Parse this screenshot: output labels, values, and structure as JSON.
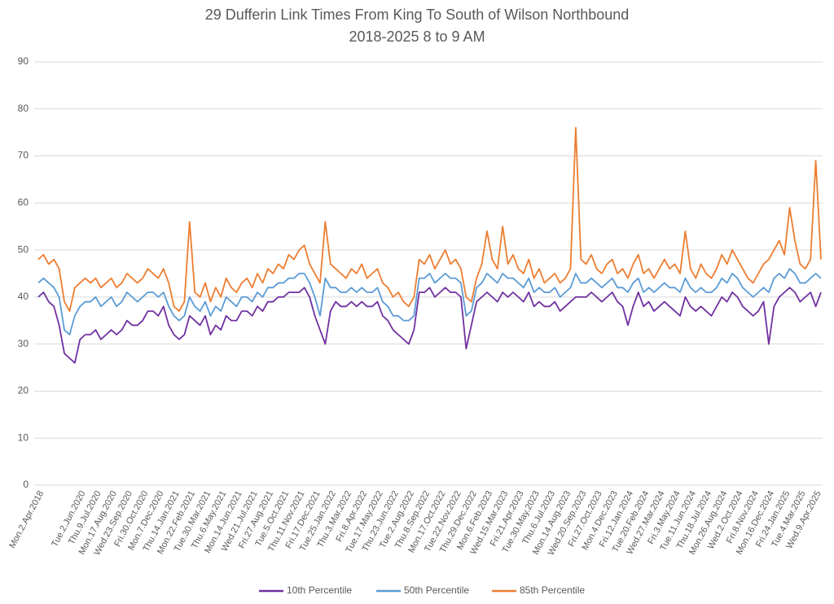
{
  "chart_data": {
    "type": "line",
    "title": "29 Dufferin Link Times From King To South of Wilson Northbound",
    "subtitle": "2018-2025 8 to 9 AM",
    "categories": [
      "Mon.2.Apr.2018",
      null,
      null,
      null,
      null,
      null,
      null,
      null,
      "Tue.2.Jun.2020",
      null,
      null,
      "Thu.9.Jul.2020",
      null,
      null,
      "Mon.17.Aug.2020",
      null,
      null,
      "Wed.23.Sep.2020",
      null,
      null,
      "Fri.30.Oct.2020",
      null,
      null,
      "Mon.7.Dec.2020",
      null,
      null,
      "Thu.14.Jan.2021",
      null,
      null,
      "Mon.22.Feb.2021",
      null,
      null,
      "Tue.30.Mar.2021",
      null,
      null,
      "Thu.6.May.2021",
      null,
      null,
      "Mon.14.Jun.2021",
      null,
      null,
      "Wed.21.Jul.2021",
      null,
      null,
      "Fri.27.Aug.2021",
      null,
      null,
      "Tue.5.Oct.2021",
      null,
      null,
      "Thu.11.Nov.2021",
      null,
      null,
      "Fri.17.Dec.2021",
      null,
      null,
      "Tue.25.Jan.2022",
      null,
      null,
      "Thu.3.Mar.2022",
      null,
      null,
      "Fri.8.Apr.2022",
      null,
      null,
      "Tue.17.May.2022",
      null,
      null,
      "Thu.23.Jun.2022",
      null,
      null,
      "Tue.2.Aug.2022",
      null,
      null,
      "Thu.8.Sep.2022",
      null,
      null,
      "Mon.17.Oct.2022",
      null,
      null,
      "Tue.22.Nov.2022",
      null,
      null,
      "Thu.29.Dec.2022",
      null,
      null,
      "Mon.6.Feb.2023",
      null,
      null,
      "Wed.15.Mar.2023",
      null,
      null,
      "Fri.21.Apr.2023",
      null,
      null,
      "Tue.30.May.2023",
      null,
      null,
      "Thu.6.Jul.2023",
      null,
      null,
      "Mon.14.Aug.2023",
      null,
      null,
      "Wed.20.Sep.2023",
      null,
      null,
      "Fri.27.Oct.2023",
      null,
      null,
      "Mon.4.Dec.2023",
      null,
      null,
      "Fri.12.Jan.2024",
      null,
      null,
      "Tue.20.Feb.2024",
      null,
      null,
      "Wed.27.Mar.2024",
      null,
      null,
      "Fri.3.May.2024",
      null,
      null,
      "Tue.11.Jun.2024",
      null,
      null,
      "Thu.18.Jul.2024",
      null,
      null,
      "Mon.26.Aug.2024",
      null,
      null,
      "Wed.2.Oct.2024",
      null,
      null,
      "Fri.8.Nov.2024",
      null,
      null,
      "Mon.16.Dec.2024",
      null,
      null,
      "Fri.24.Jan.2025",
      null,
      null,
      "Tue.4.Mar.2025",
      null,
      null,
      "Wed.9.Apr.2025",
      null
    ],
    "series": [
      {
        "name": "10th Percentile",
        "color": "#7030a0",
        "values": [
          40,
          41,
          39,
          38,
          34,
          28,
          27,
          26,
          31,
          32,
          32,
          33,
          31,
          32,
          33,
          32,
          33,
          35,
          34,
          34,
          35,
          37,
          37,
          36,
          38,
          34,
          32,
          31,
          32,
          36,
          35,
          34,
          36,
          32,
          34,
          33,
          36,
          35,
          35,
          37,
          37,
          36,
          38,
          37,
          39,
          39,
          40,
          40,
          41,
          41,
          41,
          42,
          40,
          36,
          33,
          30,
          37,
          39,
          38,
          38,
          39,
          38,
          39,
          38,
          38,
          39,
          36,
          35,
          33,
          32,
          31,
          30,
          33,
          41,
          41,
          42,
          40,
          41,
          42,
          41,
          41,
          40,
          29,
          34,
          39,
          40,
          41,
          40,
          39,
          41,
          40,
          41,
          40,
          39,
          41,
          38,
          39,
          38,
          38,
          39,
          37,
          38,
          39,
          40,
          40,
          40,
          41,
          40,
          39,
          40,
          41,
          39,
          38,
          34,
          38,
          41,
          38,
          39,
          37,
          38,
          39,
          38,
          37,
          36,
          40,
          38,
          37,
          38,
          37,
          36,
          38,
          40,
          39,
          41,
          40,
          38,
          37,
          36,
          37,
          39,
          30,
          38,
          40,
          41,
          42,
          41,
          39,
          40,
          41,
          38,
          41
        ]
      },
      {
        "name": "50th Percentile",
        "color": "#5b9bd5",
        "values": [
          43,
          44,
          43,
          42,
          40,
          33,
          32,
          36,
          38,
          39,
          39,
          40,
          38,
          39,
          40,
          38,
          39,
          41,
          40,
          39,
          40,
          41,
          41,
          40,
          41,
          38,
          36,
          35,
          36,
          40,
          38,
          37,
          39,
          36,
          38,
          37,
          40,
          39,
          38,
          40,
          40,
          39,
          41,
          40,
          42,
          42,
          43,
          43,
          44,
          44,
          45,
          45,
          43,
          40,
          36,
          44,
          42,
          42,
          41,
          41,
          42,
          41,
          42,
          41,
          41,
          42,
          39,
          38,
          36,
          36,
          35,
          35,
          36,
          44,
          44,
          45,
          43,
          44,
          45,
          44,
          44,
          43,
          36,
          37,
          42,
          43,
          45,
          44,
          43,
          45,
          44,
          44,
          43,
          42,
          44,
          41,
          42,
          41,
          41,
          42,
          40,
          41,
          42,
          45,
          43,
          43,
          44,
          43,
          42,
          43,
          44,
          42,
          42,
          41,
          43,
          44,
          41,
          42,
          41,
          42,
          43,
          42,
          42,
          41,
          44,
          42,
          41,
          42,
          41,
          41,
          42,
          44,
          43,
          45,
          44,
          42,
          41,
          40,
          41,
          42,
          41,
          44,
          45,
          44,
          46,
          45,
          43,
          43,
          44,
          45,
          44
        ]
      },
      {
        "name": "85th Percentile",
        "color": "#ed7d31",
        "values": [
          48,
          49,
          47,
          48,
          46,
          39,
          37,
          42,
          43,
          44,
          43,
          44,
          42,
          43,
          44,
          42,
          43,
          45,
          44,
          43,
          44,
          46,
          45,
          44,
          46,
          43,
          38,
          37,
          39,
          56,
          41,
          40,
          43,
          39,
          42,
          40,
          44,
          42,
          41,
          43,
          44,
          42,
          45,
          43,
          46,
          45,
          47,
          46,
          49,
          48,
          50,
          51,
          47,
          45,
          43,
          56,
          47,
          46,
          45,
          44,
          46,
          45,
          47,
          44,
          45,
          46,
          43,
          42,
          40,
          41,
          39,
          38,
          40,
          48,
          47,
          49,
          46,
          48,
          50,
          47,
          48,
          46,
          40,
          39,
          44,
          47,
          54,
          48,
          46,
          55,
          47,
          49,
          46,
          45,
          48,
          44,
          46,
          43,
          44,
          45,
          43,
          44,
          46,
          76,
          48,
          47,
          49,
          46,
          45,
          47,
          48,
          45,
          46,
          44,
          47,
          49,
          45,
          46,
          44,
          46,
          48,
          46,
          47,
          45,
          54,
          46,
          44,
          47,
          45,
          44,
          46,
          49,
          47,
          50,
          48,
          46,
          44,
          43,
          45,
          47,
          48,
          50,
          52,
          49,
          59,
          52,
          47,
          46,
          48,
          69,
          48
        ]
      }
    ],
    "ylim": [
      0,
      90
    ],
    "yticks": [
      0,
      10,
      20,
      30,
      40,
      50,
      60,
      70,
      80,
      90
    ],
    "grid": true,
    "legend": "bottom"
  }
}
